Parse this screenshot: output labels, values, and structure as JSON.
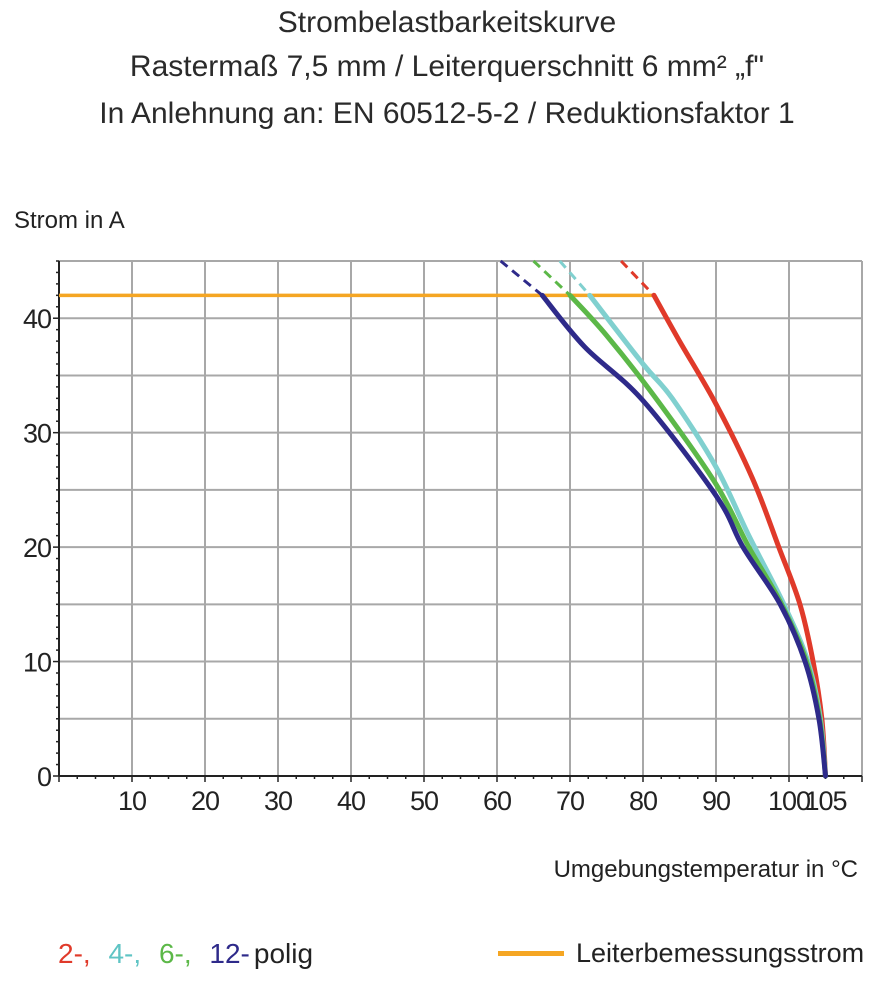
{
  "chart_data": {
    "type": "line",
    "title": "Strombelastbarkeitskurve",
    "subtitle": "Rastermaß 7,5 mm / Leiterquerschnitt 6 mm² „f\"",
    "subtitle2": "In Anlehnung an: EN 60512-5-2 / Reduktionsfaktor 1",
    "xlabel": "Umgebungstemperatur in °C",
    "ylabel": "Strom in A",
    "xlim": [
      0,
      110
    ],
    "ylim": [
      0,
      45
    ],
    "grid": true,
    "xticks": [
      10,
      20,
      30,
      40,
      50,
      60,
      70,
      80,
      90,
      100,
      105
    ],
    "xtick_labels": [
      "10",
      "20",
      "30",
      "40",
      "50",
      "60",
      "70",
      "80",
      "90",
      "100",
      "105"
    ],
    "yticks": [
      0,
      10,
      20,
      30,
      40
    ],
    "ytick_labels": [
      "0",
      "10",
      "20",
      "30",
      "40"
    ],
    "legend_placement": "bottom",
    "legend": {
      "entries": [
        "2-,",
        "4-,",
        "6-,",
        "12-"
      ],
      "suffix": "polig",
      "rated_current_label": "Leiterbemessungsstrom"
    },
    "rated_current": {
      "value": 42,
      "x_range": [
        0,
        81.5
      ],
      "color": "#f5a623"
    },
    "series": [
      {
        "name": "2-",
        "color": "#e03a2a",
        "dashed": [
          [
            77,
            45
          ],
          [
            81.5,
            42
          ]
        ],
        "points": [
          [
            81.5,
            42
          ],
          [
            85,
            38
          ],
          [
            90,
            32.5
          ],
          [
            95,
            26
          ],
          [
            98.6,
            20
          ],
          [
            101.5,
            15
          ],
          [
            103.3,
            10
          ],
          [
            104.5,
            5
          ],
          [
            105,
            0
          ]
        ]
      },
      {
        "name": "4-",
        "color": "#80d0cf",
        "dashed": [
          [
            68.6,
            45
          ],
          [
            72.7,
            42
          ]
        ],
        "points": [
          [
            72.7,
            42
          ],
          [
            80,
            36
          ],
          [
            84,
            33
          ],
          [
            90,
            27
          ],
          [
            94.5,
            21
          ],
          [
            99.3,
            15
          ],
          [
            102.6,
            10
          ],
          [
            104.3,
            5
          ],
          [
            105,
            0
          ]
        ]
      },
      {
        "name": "6-",
        "color": "#5cb848",
        "dashed": [
          [
            65,
            45
          ],
          [
            70,
            42
          ]
        ],
        "points": [
          [
            70,
            42
          ],
          [
            75,
            38.5
          ],
          [
            82,
            32.8
          ],
          [
            90,
            25.5
          ],
          [
            94.5,
            20
          ],
          [
            99,
            15
          ],
          [
            102.4,
            10
          ],
          [
            104.2,
            5
          ],
          [
            105,
            0
          ]
        ]
      },
      {
        "name": "12-",
        "color": "#2e2a8a",
        "dashed": [
          [
            60.5,
            45
          ],
          [
            66.2,
            42
          ]
        ],
        "points": [
          [
            66.2,
            42
          ],
          [
            72,
            37.5
          ],
          [
            80,
            32.8
          ],
          [
            90,
            24.5
          ],
          [
            93.7,
            20
          ],
          [
            98.8,
            15
          ],
          [
            102.2,
            10
          ],
          [
            104.1,
            5
          ],
          [
            105,
            0
          ]
        ]
      }
    ]
  }
}
